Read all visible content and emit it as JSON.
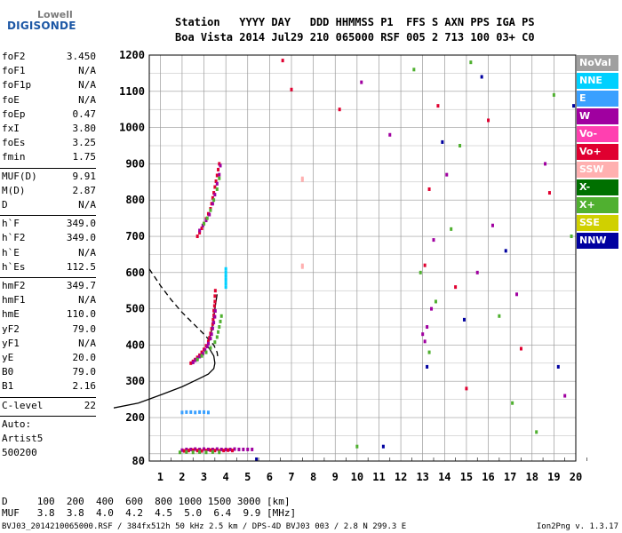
{
  "logo": {
    "top": "Lowell",
    "bottom": "DIGISONDE"
  },
  "header": {
    "row1": "Station   YYYY DAY   DDD HHMMSS P1  FFS S AXN PPS IGA PS",
    "row2": "Boa Vista 2014 Jul29 210 065000 RSF 005 2 713 100 03+ C0"
  },
  "params_group1": [
    {
      "name": "foF2",
      "value": "3.450"
    },
    {
      "name": "foF1",
      "value": "N/A"
    },
    {
      "name": "foF1p",
      "value": "N/A"
    },
    {
      "name": "foE",
      "value": "N/A"
    },
    {
      "name": "foEp",
      "value": "0.47"
    },
    {
      "name": "fxI",
      "value": "3.80"
    },
    {
      "name": "foEs",
      "value": "3.25"
    },
    {
      "name": "fmin",
      "value": "1.75"
    }
  ],
  "params_group2": [
    {
      "name": "MUF(D)",
      "value": "9.91"
    },
    {
      "name": "M(D)",
      "value": "2.87"
    },
    {
      "name": "D",
      "value": "N/A"
    }
  ],
  "params_group3": [
    {
      "name": "h`F",
      "value": "349.0"
    },
    {
      "name": "h`F2",
      "value": "349.0"
    },
    {
      "name": "h`E",
      "value": "N/A"
    },
    {
      "name": "h`Es",
      "value": "112.5"
    }
  ],
  "params_group4": [
    {
      "name": "hmF2",
      "value": "349.7"
    },
    {
      "name": "hmF1",
      "value": "N/A"
    },
    {
      "name": "hmE",
      "value": "110.0"
    },
    {
      "name": "yF2",
      "value": "79.0"
    },
    {
      "name": "yF1",
      "value": "N/A"
    },
    {
      "name": "yE",
      "value": "20.0"
    },
    {
      "name": "B0",
      "value": "79.0"
    },
    {
      "name": "B1",
      "value": "2.16"
    }
  ],
  "clevel": {
    "name": "C-level",
    "value": "22"
  },
  "auto": {
    "line1": "Auto:",
    "line2": "Artist5",
    "line3": "500200"
  },
  "legend": [
    {
      "label": "NoVal",
      "color": "#a0a0a0"
    },
    {
      "label": "NNE",
      "color": "#00d0ff"
    },
    {
      "label": "E",
      "color": "#3aa0ff"
    },
    {
      "label": "W",
      "color": "#a000a0"
    },
    {
      "label": "Vo-",
      "color": "#ff40b0"
    },
    {
      "label": "Vo+",
      "color": "#e00030"
    },
    {
      "label": "SSW",
      "color": "#ffb0b0"
    },
    {
      "label": "X-",
      "color": "#007000"
    },
    {
      "label": "X+",
      "color": "#50b030"
    },
    {
      "label": "SSE",
      "color": "#d0d000"
    },
    {
      "label": "NNW",
      "color": "#0000a0"
    }
  ],
  "muf_table": {
    "d_row": "D     100  200  400  600  800 1000 1500 3000 [km]",
    "muf_row": "MUF   3.8  3.8  4.0  4.2  4.5  5.0  6.4  9.9 [MHz]"
  },
  "footer": {
    "left": "BVJ03_2014210065000.RSF / 384fx512h 50 kHz 2.5 km / DPS-4D BVJ03 003 / 2.8 N 299.3 E",
    "right": "Ion2Png v. 1.3.17"
  },
  "chart_data": {
    "type": "scatter",
    "title": "",
    "xlabel": "",
    "ylabel": "",
    "xlim": [
      0.5,
      20
    ],
    "ylim": [
      80,
      1200
    ],
    "x_ticks": [
      1,
      2,
      3,
      4,
      5,
      6,
      7,
      8,
      9,
      10,
      11,
      12,
      13,
      14,
      15,
      16,
      17,
      18,
      19,
      20
    ],
    "y_ticks": [
      80,
      200,
      300,
      400,
      500,
      600,
      700,
      800,
      900,
      1000,
      1100,
      1200
    ],
    "grid": true,
    "legend_position": "right",
    "profile_solid": [
      [
        -1.5,
        222
      ],
      [
        0,
        240
      ],
      [
        1.0,
        262
      ],
      [
        2.0,
        285
      ],
      [
        2.7,
        305
      ],
      [
        3.2,
        320
      ],
      [
        3.45,
        335
      ],
      [
        3.5,
        350
      ],
      [
        3.45,
        370
      ],
      [
        3.3,
        385
      ],
      [
        3.15,
        398
      ],
      [
        3.2,
        410
      ],
      [
        3.35,
        440
      ],
      [
        3.5,
        500
      ],
      [
        3.6,
        540
      ]
    ],
    "profile_dashed": [
      [
        0.5,
        610
      ],
      [
        1.0,
        565
      ],
      [
        1.5,
        525
      ],
      [
        2.0,
        490
      ],
      [
        2.5,
        460
      ],
      [
        3.0,
        430
      ],
      [
        3.45,
        400
      ],
      [
        3.6,
        380
      ],
      [
        3.65,
        360
      ]
    ],
    "traces": [
      {
        "name": "F2 O-trace",
        "color": "#e00030",
        "x": [
          2.4,
          2.5,
          2.6,
          2.7,
          2.8,
          2.9,
          3.0,
          3.1,
          3.2,
          3.25,
          3.3,
          3.35,
          3.4,
          3.42,
          3.45,
          3.45,
          3.48,
          3.5,
          3.5,
          3.52
        ],
        "y": [
          350,
          355,
          360,
          366,
          372,
          380,
          388,
          398,
          410,
          420,
          432,
          445,
          458,
          470,
          482,
          495,
          508,
          520,
          535,
          550
        ]
      },
      {
        "name": "F2 W-trace",
        "color": "#a000a0",
        "x": [
          2.5,
          2.6,
          2.7,
          2.8,
          2.95,
          3.05,
          3.15,
          3.2,
          3.3,
          3.35,
          3.4,
          3.45,
          3.5,
          3.52
        ],
        "y": [
          352,
          358,
          362,
          368,
          376,
          386,
          396,
          404,
          418,
          430,
          446,
          462,
          478,
          494
        ]
      },
      {
        "name": "F2 X-trace",
        "color": "#50b030",
        "x": [
          2.7,
          2.9,
          3.1,
          3.3,
          3.5,
          3.6,
          3.65,
          3.7,
          3.75,
          3.8
        ],
        "y": [
          360,
          370,
          380,
          392,
          408,
          422,
          436,
          450,
          465,
          480
        ]
      },
      {
        "name": "2F2 trace",
        "color": "#e00030",
        "x": [
          2.7,
          2.8,
          2.9,
          3.0,
          3.1,
          3.2,
          3.3,
          3.35,
          3.4,
          3.45,
          3.5,
          3.55,
          3.6,
          3.65,
          3.7
        ],
        "y": [
          700,
          710,
          722,
          735,
          748,
          762,
          776,
          790,
          806,
          820,
          836,
          852,
          868,
          884,
          900
        ]
      },
      {
        "name": "2F2 W-trace",
        "color": "#a000a0",
        "x": [
          2.8,
          2.95,
          3.1,
          3.25,
          3.4,
          3.5,
          3.6,
          3.7,
          3.75
        ],
        "y": [
          716,
          730,
          744,
          760,
          790,
          815,
          845,
          870,
          895
        ]
      },
      {
        "name": "2F2 X-trace",
        "color": "#50b030",
        "x": [
          3.0,
          3.15,
          3.3,
          3.45,
          3.6,
          3.7
        ],
        "y": [
          735,
          750,
          772,
          800,
          830,
          860
        ]
      },
      {
        "name": "Es trace",
        "color": "#a000a0",
        "x": [
          2.0,
          2.2,
          2.4,
          2.6,
          2.8,
          3.0,
          3.2,
          3.4,
          3.6,
          3.8,
          4.0,
          4.2,
          4.4,
          4.6,
          4.8,
          5.0,
          5.2
        ],
        "y": [
          110,
          112,
          112,
          113,
          112,
          113,
          112,
          112,
          113,
          112,
          112,
          112,
          113,
          112,
          112,
          112,
          112
        ]
      },
      {
        "name": "Es O",
        "color": "#e00030",
        "x": [
          2.1,
          2.3,
          2.5,
          2.7,
          2.9,
          3.1,
          3.3,
          3.5,
          3.7,
          3.9,
          4.1,
          4.3
        ],
        "y": [
          108,
          109,
          110,
          109,
          108,
          109,
          110,
          109,
          108,
          109,
          110,
          109
        ]
      },
      {
        "name": "Es X",
        "color": "#50b030",
        "x": [
          1.9,
          2.2,
          2.5,
          2.8,
          3.1,
          3.4,
          3.7
        ],
        "y": [
          104,
          105,
          104,
          105,
          104,
          105,
          104
        ]
      },
      {
        "name": "Es 2",
        "color": "#3aa0ff",
        "x": [
          2.0,
          2.2,
          2.4,
          2.6,
          2.8,
          3.0,
          3.2
        ],
        "y": [
          214,
          215,
          215,
          214,
          215,
          215,
          214
        ]
      },
      {
        "name": "NNE echoes",
        "color": "#00d0ff",
        "x": [
          4.0,
          4.0,
          4.0,
          4.0,
          4.0,
          4.0
        ],
        "y": [
          560,
          570,
          580,
          590,
          600,
          610
        ]
      },
      {
        "name": "Sporadic echoes",
        "color": "#a000a0",
        "x": [
          13.0,
          13.1,
          13.2,
          13.4,
          13.5,
          14.1,
          15.5,
          16.2,
          17.3,
          18.6,
          19.5,
          10.2,
          11.5
        ],
        "y": [
          430,
          410,
          450,
          500,
          690,
          870,
          600,
          730,
          540,
          900,
          260,
          1125,
          980
        ]
      },
      {
        "name": "Sporadic green",
        "color": "#50b030",
        "x": [
          12.9,
          13.3,
          13.6,
          14.3,
          14.7,
          15.2,
          16.5,
          17.1,
          18.2,
          19.0,
          19.8,
          12.6,
          10.0
        ],
        "y": [
          600,
          380,
          520,
          720,
          950,
          1180,
          480,
          240,
          160,
          1090,
          700,
          1160,
          120
        ]
      },
      {
        "name": "Sporadic red",
        "color": "#e00030",
        "x": [
          13.1,
          13.3,
          13.7,
          14.5,
          15.0,
          16.0,
          17.5,
          18.8,
          6.6,
          7.0,
          9.2
        ],
        "y": [
          620,
          830,
          1060,
          560,
          280,
          1020,
          390,
          820,
          1185,
          1105,
          1050
        ]
      },
      {
        "name": "Sporadic blue",
        "color": "#0000a0",
        "x": [
          13.2,
          13.9,
          15.7,
          16.8,
          19.2,
          19.9,
          5.4,
          11.2,
          14.9
        ],
        "y": [
          340,
          960,
          1140,
          660,
          340,
          1060,
          85,
          120,
          470
        ]
      },
      {
        "name": "Low echoes",
        "color": "#ffb0b0",
        "x": [
          7.5,
          7.5,
          7.5,
          7.5
        ],
        "y": [
          855,
          860,
          615,
          620
        ]
      }
    ]
  }
}
